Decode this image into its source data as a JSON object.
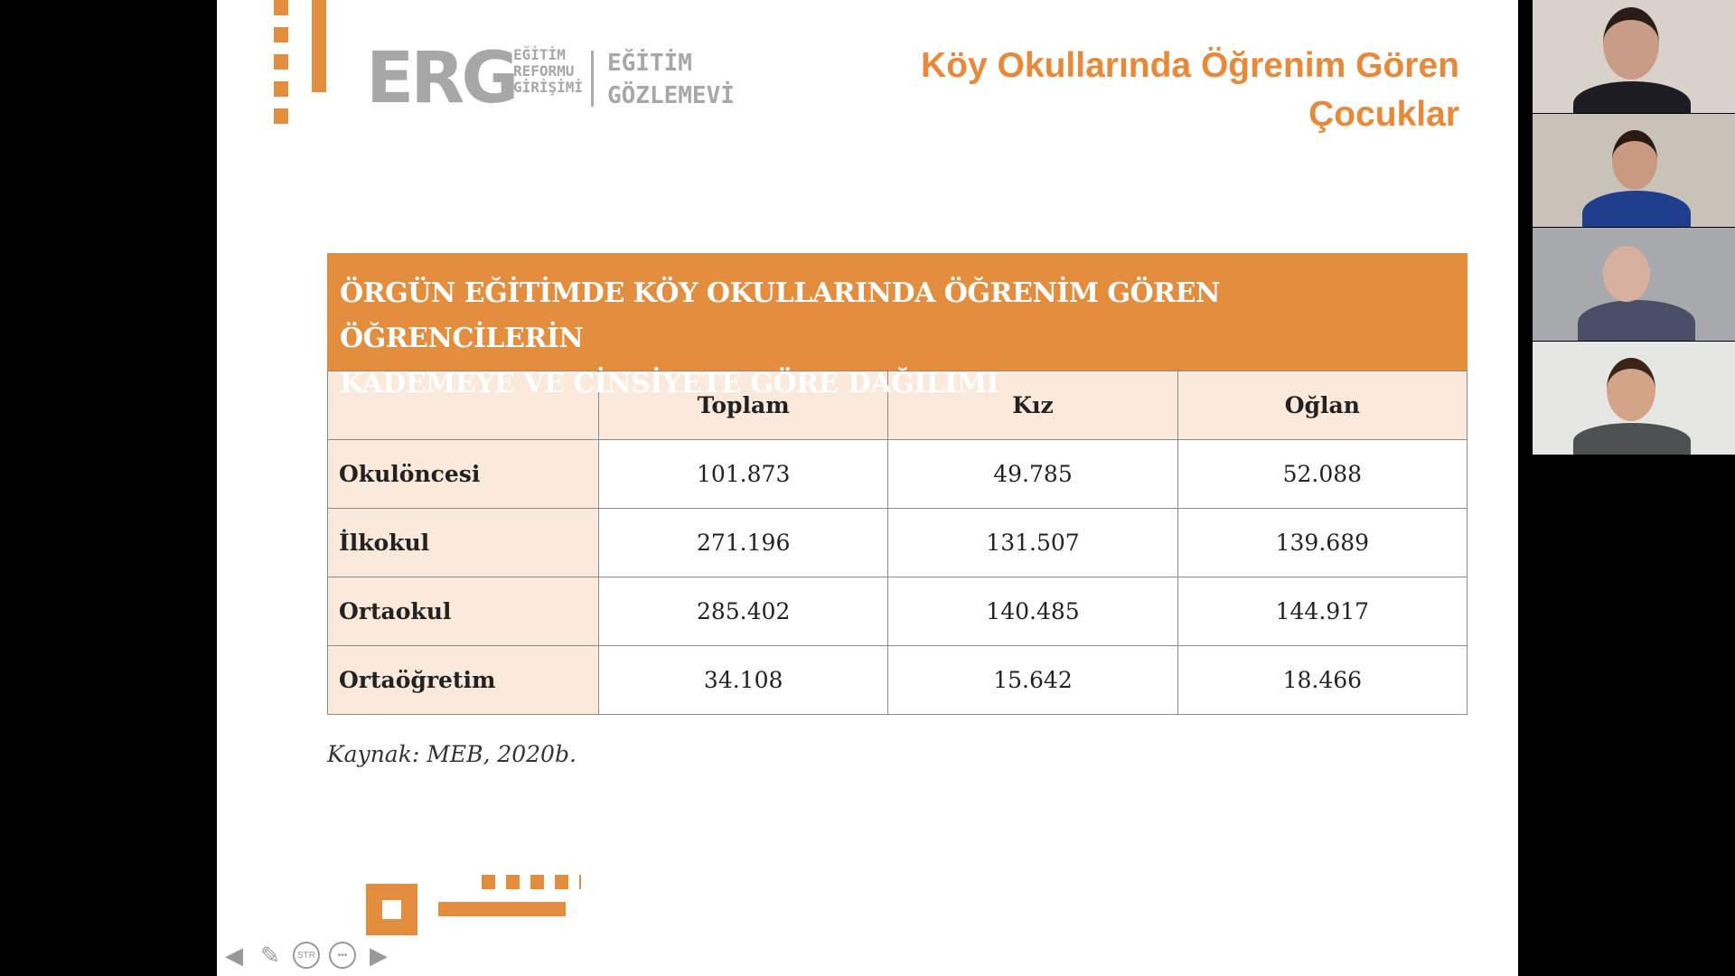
{
  "slide": {
    "title": "Köy Okullarında Öğrenim Gören Çocuklar",
    "logo": {
      "brand": "ERG",
      "line1": "EĞİTİM",
      "line2": "REFORMU",
      "line3": "GİRİŞİMİ",
      "sub1": "EĞİTİM",
      "sub2": "GÖZLEMEVİ"
    },
    "table": {
      "title_line1": "ÖRGÜN EĞİTİMDE KÖY OKULLARINDA ÖĞRENİM GÖREN ÖĞRENCİLERİN",
      "title_line2": "KADEMEYE VE CİNSİYETE GÖRE DAĞILIMI",
      "columns": [
        "",
        "Toplam",
        "Kız",
        "Oğlan"
      ],
      "rows": [
        [
          "Okulöncesi",
          "101.873",
          "49.785",
          "52.088"
        ],
        [
          "İlkokul",
          "271.196",
          "131.507",
          "139.689"
        ],
        [
          "Ortaokul",
          "285.402",
          "140.485",
          "144.917"
        ],
        [
          "Ortaöğretim",
          "34.108",
          "15.642",
          "18.466"
        ]
      ]
    },
    "source": "Kaynak: MEB, 2020b.",
    "accent_color": "#e38e3f"
  },
  "controls": {
    "icons": [
      "arrow-left-icon",
      "pen-icon",
      "subtitles-icon",
      "more-icon",
      "arrow-right-icon"
    ],
    "subtitles_glyph": "STR",
    "more_glyph": "•••"
  },
  "participants": [
    {
      "tile": "participant-1"
    },
    {
      "tile": "participant-2"
    },
    {
      "tile": "participant-3"
    },
    {
      "tile": "participant-4"
    }
  ]
}
